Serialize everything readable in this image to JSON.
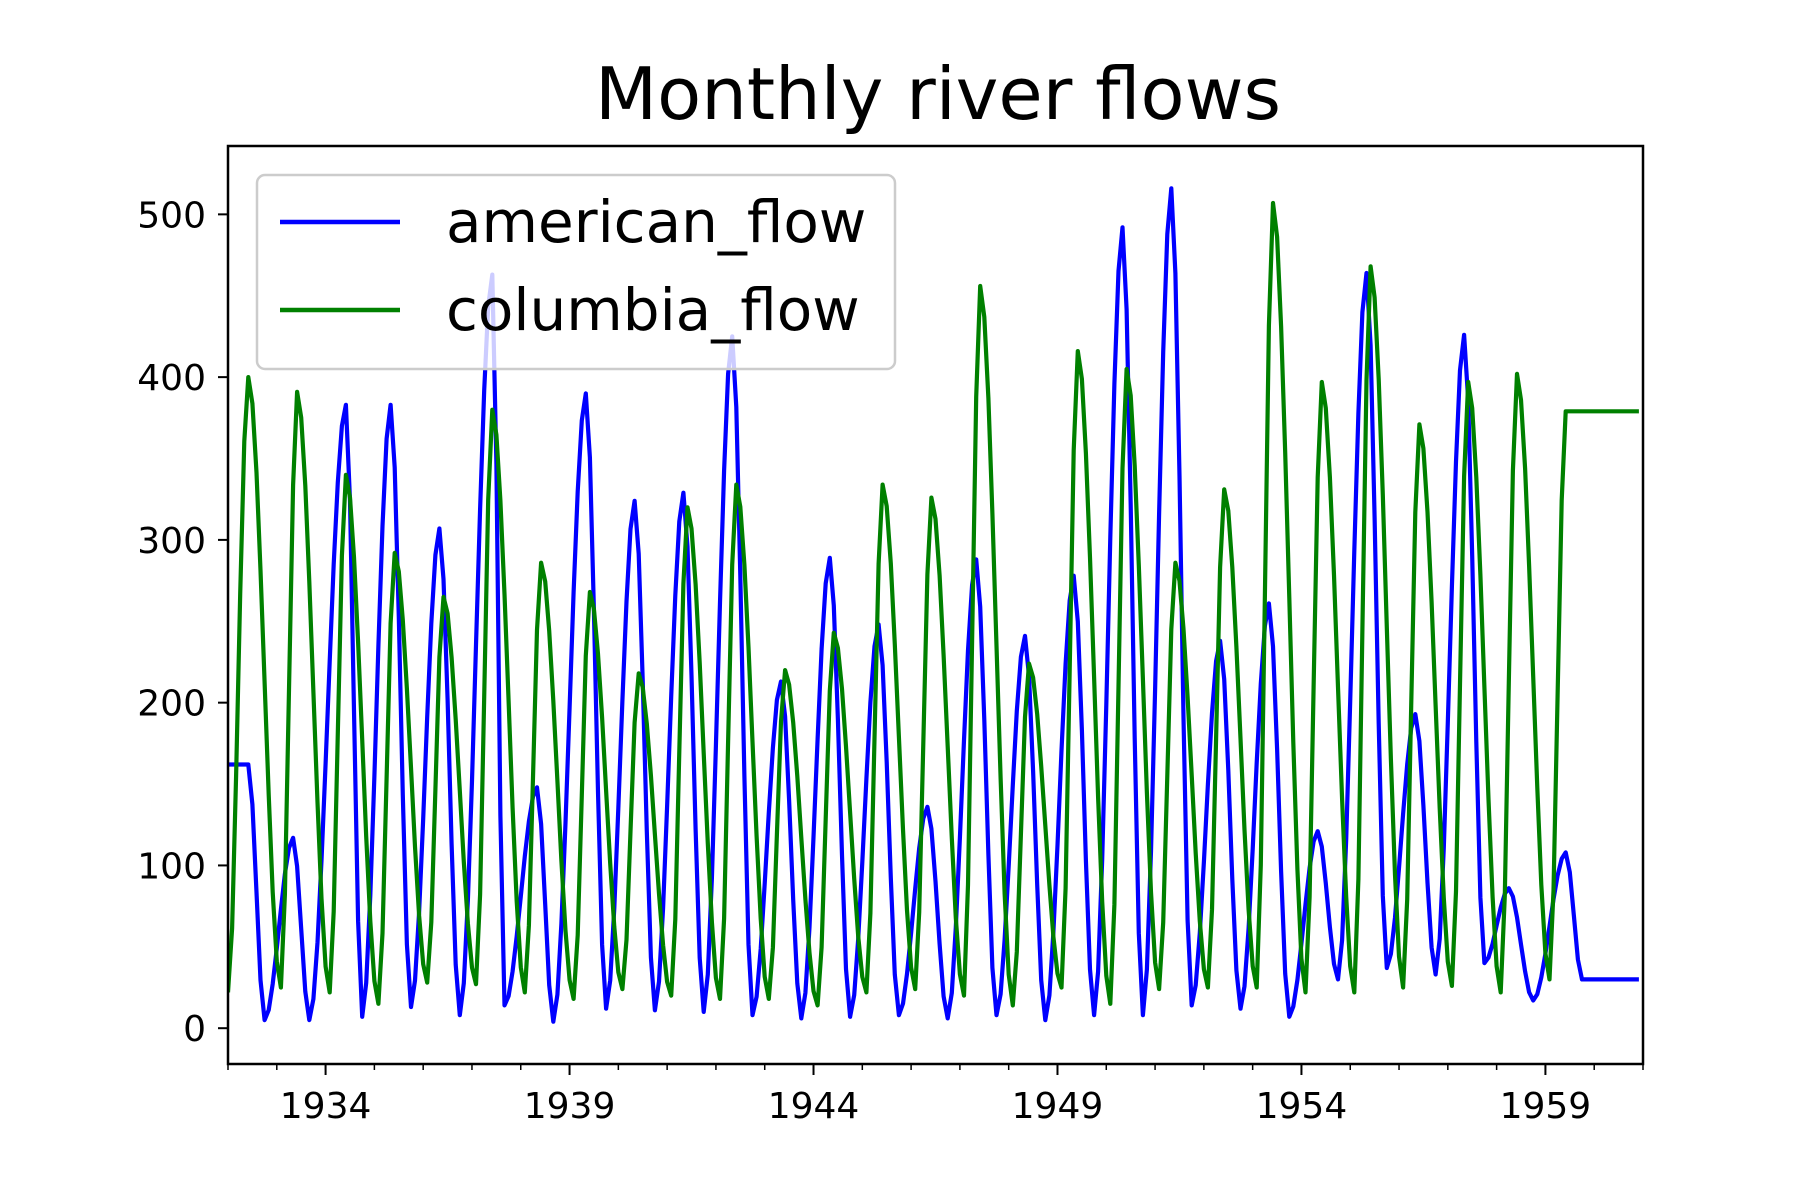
{
  "chart_data": {
    "type": "line",
    "title": "Monthly river flows",
    "xlabel": "",
    "ylabel": "",
    "x_start": "1932-01",
    "x_frequency": "monthly",
    "xlim": [
      "1932-01",
      "1960-12"
    ],
    "ylim": [
      -22,
      542
    ],
    "x_ticks": [
      "1934",
      "1939",
      "1944",
      "1949",
      "1954",
      "1959"
    ],
    "y_ticks": [
      0,
      100,
      200,
      300,
      400,
      500
    ],
    "grid": false,
    "legend_position": "top-left",
    "series": [
      {
        "name": "american_flow",
        "color": "#0000ff",
        "peaks": [
          [
            "1932-06",
            162
          ],
          [
            "1933-05",
            117
          ],
          [
            "1934-06",
            383
          ],
          [
            "1935-05",
            383
          ],
          [
            "1936-05",
            307
          ],
          [
            "1937-06",
            463
          ],
          [
            "1938-05",
            148
          ],
          [
            "1939-05",
            390
          ],
          [
            "1940-05",
            324
          ],
          [
            "1941-05",
            329
          ],
          [
            "1942-05",
            425
          ],
          [
            "1943-05",
            213
          ],
          [
            "1944-05",
            289
          ],
          [
            "1945-05",
            248
          ],
          [
            "1946-05",
            136
          ],
          [
            "1947-05",
            288
          ],
          [
            "1948-05",
            241
          ],
          [
            "1949-05",
            278
          ],
          [
            "1950-05",
            492
          ],
          [
            "1951-05",
            516
          ],
          [
            "1952-05",
            238
          ],
          [
            "1953-05",
            261
          ],
          [
            "1954-05",
            121
          ],
          [
            "1955-05",
            464
          ],
          [
            "1956-05",
            193
          ],
          [
            "1957-05",
            426
          ],
          [
            "1958-04",
            86
          ],
          [
            "1959-06",
            108
          ]
        ],
        "lows": [
          [
            "1932-10",
            5
          ],
          [
            "1933-09",
            5
          ],
          [
            "1934-10",
            7
          ],
          [
            "1935-10",
            13
          ],
          [
            "1936-10",
            8
          ],
          [
            "1937-09",
            14
          ],
          [
            "1938-09",
            4
          ],
          [
            "1939-10",
            12
          ],
          [
            "1940-10",
            11
          ],
          [
            "1941-10",
            10
          ],
          [
            "1942-10",
            8
          ],
          [
            "1943-10",
            6
          ],
          [
            "1944-10",
            7
          ],
          [
            "1945-10",
            8
          ],
          [
            "1946-10",
            6
          ],
          [
            "1947-10",
            8
          ],
          [
            "1948-10",
            5
          ],
          [
            "1949-10",
            8
          ],
          [
            "1950-10",
            8
          ],
          [
            "1951-10",
            14
          ],
          [
            "1952-10",
            12
          ],
          [
            "1953-10",
            7
          ],
          [
            "1954-10",
            30
          ],
          [
            "1955-10",
            37
          ],
          [
            "1956-10",
            33
          ],
          [
            "1957-10",
            40
          ],
          [
            "1958-10",
            17
          ],
          [
            "1959-10",
            30
          ]
        ]
      },
      {
        "name": "columbia_flow",
        "color": "#008000",
        "peaks": [
          [
            "1932-06",
            400
          ],
          [
            "1933-06",
            391
          ],
          [
            "1934-06",
            340
          ],
          [
            "1935-06",
            292
          ],
          [
            "1936-06",
            265
          ],
          [
            "1937-06",
            380
          ],
          [
            "1938-06",
            286
          ],
          [
            "1939-06",
            268
          ],
          [
            "1940-06",
            218
          ],
          [
            "1941-06",
            320
          ],
          [
            "1942-06",
            334
          ],
          [
            "1943-06",
            220
          ],
          [
            "1944-06",
            243
          ],
          [
            "1945-06",
            334
          ],
          [
            "1946-06",
            326
          ],
          [
            "1947-06",
            456
          ],
          [
            "1948-06",
            224
          ],
          [
            "1949-06",
            416
          ],
          [
            "1950-06",
            405
          ],
          [
            "1951-06",
            286
          ],
          [
            "1952-06",
            331
          ],
          [
            "1953-06",
            507
          ],
          [
            "1954-06",
            397
          ],
          [
            "1955-06",
            468
          ],
          [
            "1956-06",
            371
          ],
          [
            "1957-06",
            397
          ],
          [
            "1958-06",
            402
          ],
          [
            "1959-06",
            379
          ]
        ],
        "lows": [
          [
            "1932-01",
            22
          ],
          [
            "1933-02",
            25
          ],
          [
            "1934-02",
            22
          ],
          [
            "1935-02",
            15
          ],
          [
            "1936-02",
            28
          ],
          [
            "1937-02",
            27
          ],
          [
            "1938-02",
            22
          ],
          [
            "1939-02",
            18
          ],
          [
            "1940-02",
            24
          ],
          [
            "1941-02",
            20
          ],
          [
            "1942-02",
            18
          ],
          [
            "1943-02",
            18
          ],
          [
            "1944-02",
            14
          ],
          [
            "1945-02",
            22
          ],
          [
            "1946-02",
            24
          ],
          [
            "1947-02",
            20
          ],
          [
            "1948-02",
            14
          ],
          [
            "1949-02",
            25
          ],
          [
            "1950-02",
            15
          ],
          [
            "1951-02",
            24
          ],
          [
            "1952-02",
            25
          ],
          [
            "1953-02",
            25
          ],
          [
            "1954-02",
            22
          ],
          [
            "1955-02",
            22
          ],
          [
            "1956-02",
            25
          ],
          [
            "1957-02",
            26
          ],
          [
            "1958-02",
            22
          ],
          [
            "1959-02",
            30
          ]
        ]
      }
    ]
  }
}
